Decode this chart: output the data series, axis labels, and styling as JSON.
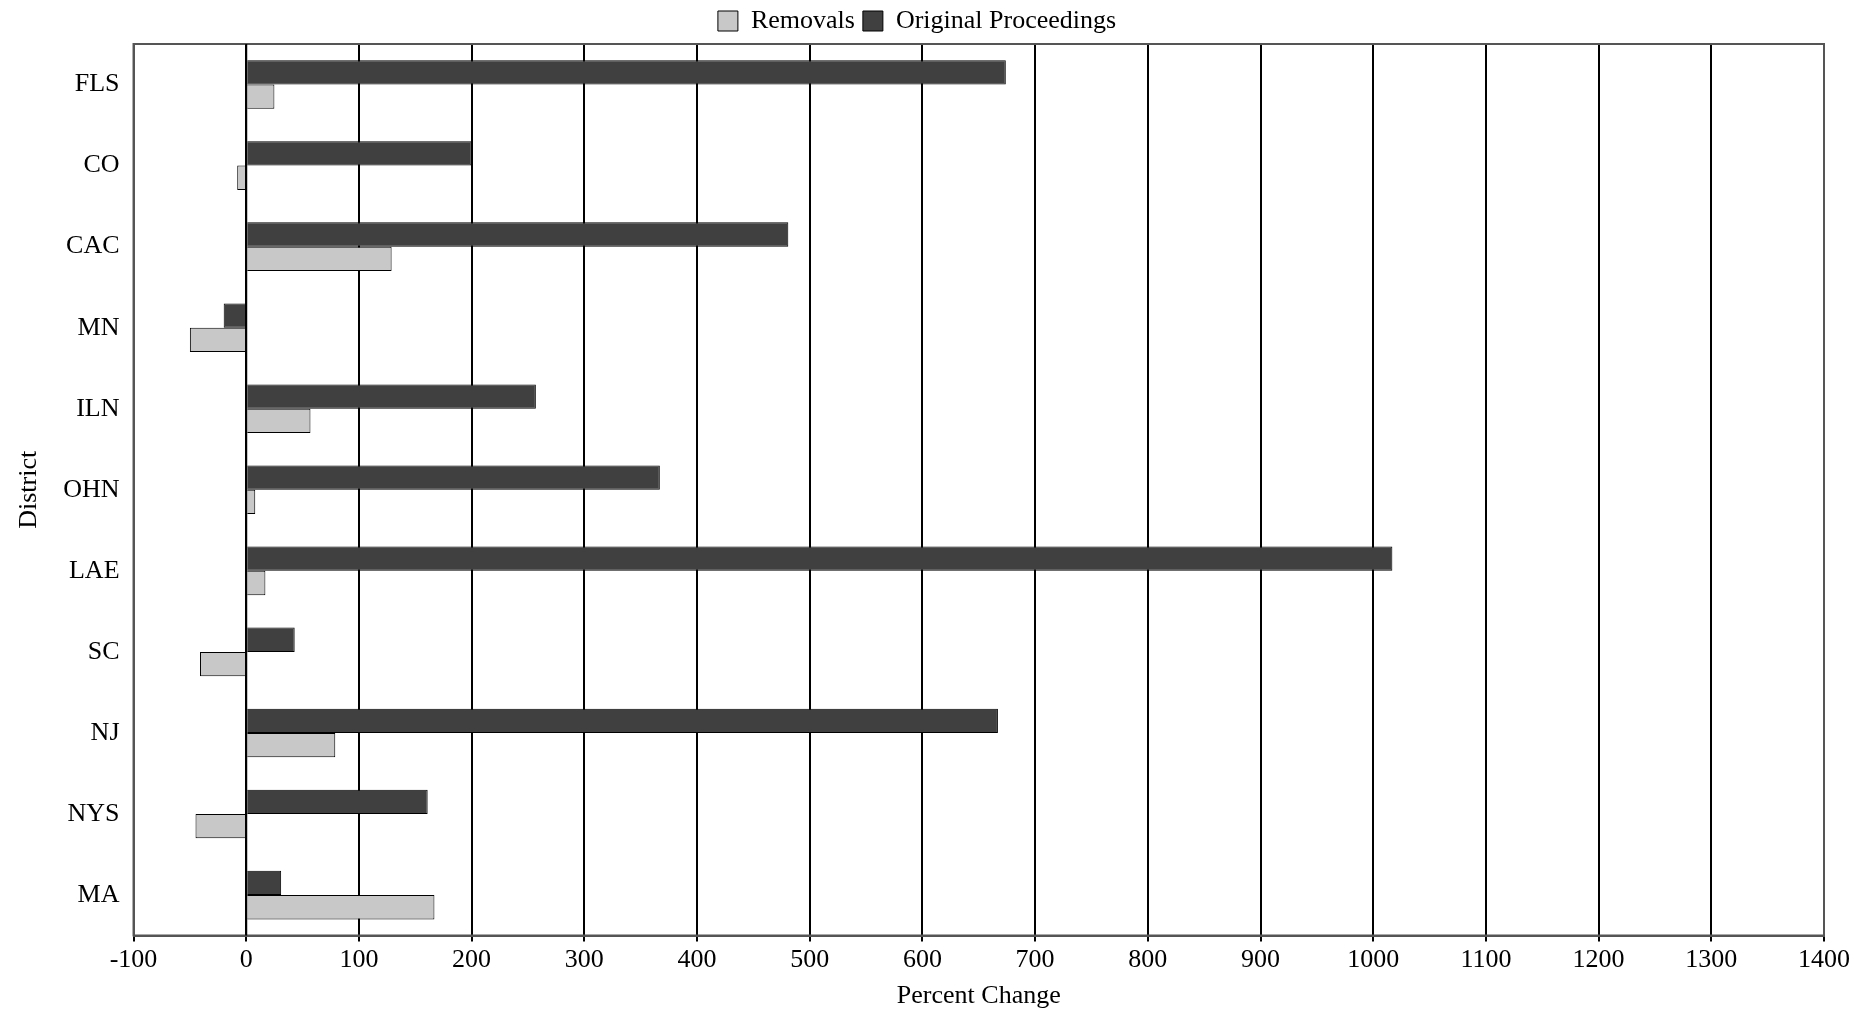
{
  "chart_data": {
    "type": "bar",
    "orientation": "horizontal",
    "xlabel": "Percent Change",
    "ylabel": "District",
    "categories": [
      "FLS",
      "CO",
      "CAC",
      "MN",
      "ILN",
      "OHN",
      "LAE",
      "SC",
      "NJ",
      "NYS",
      "MA"
    ],
    "series": [
      {
        "name": "Removals",
        "color": "#c8c8c8",
        "values": [
          25,
          -8,
          129,
          -50,
          57,
          8,
          17,
          -41,
          79,
          -45,
          167
        ]
      },
      {
        "name": "Original Proceedings",
        "color": "#404040",
        "values": [
          674,
          200,
          481,
          -20,
          257,
          367,
          1017,
          43,
          667,
          161,
          31
        ]
      }
    ],
    "xlim": [
      -100,
      1400
    ],
    "xticks": [
      -100,
      0,
      100,
      200,
      300,
      400,
      500,
      600,
      700,
      800,
      900,
      1000,
      1100,
      1200,
      1300,
      1400
    ],
    "grid": "x",
    "legend": "top"
  }
}
